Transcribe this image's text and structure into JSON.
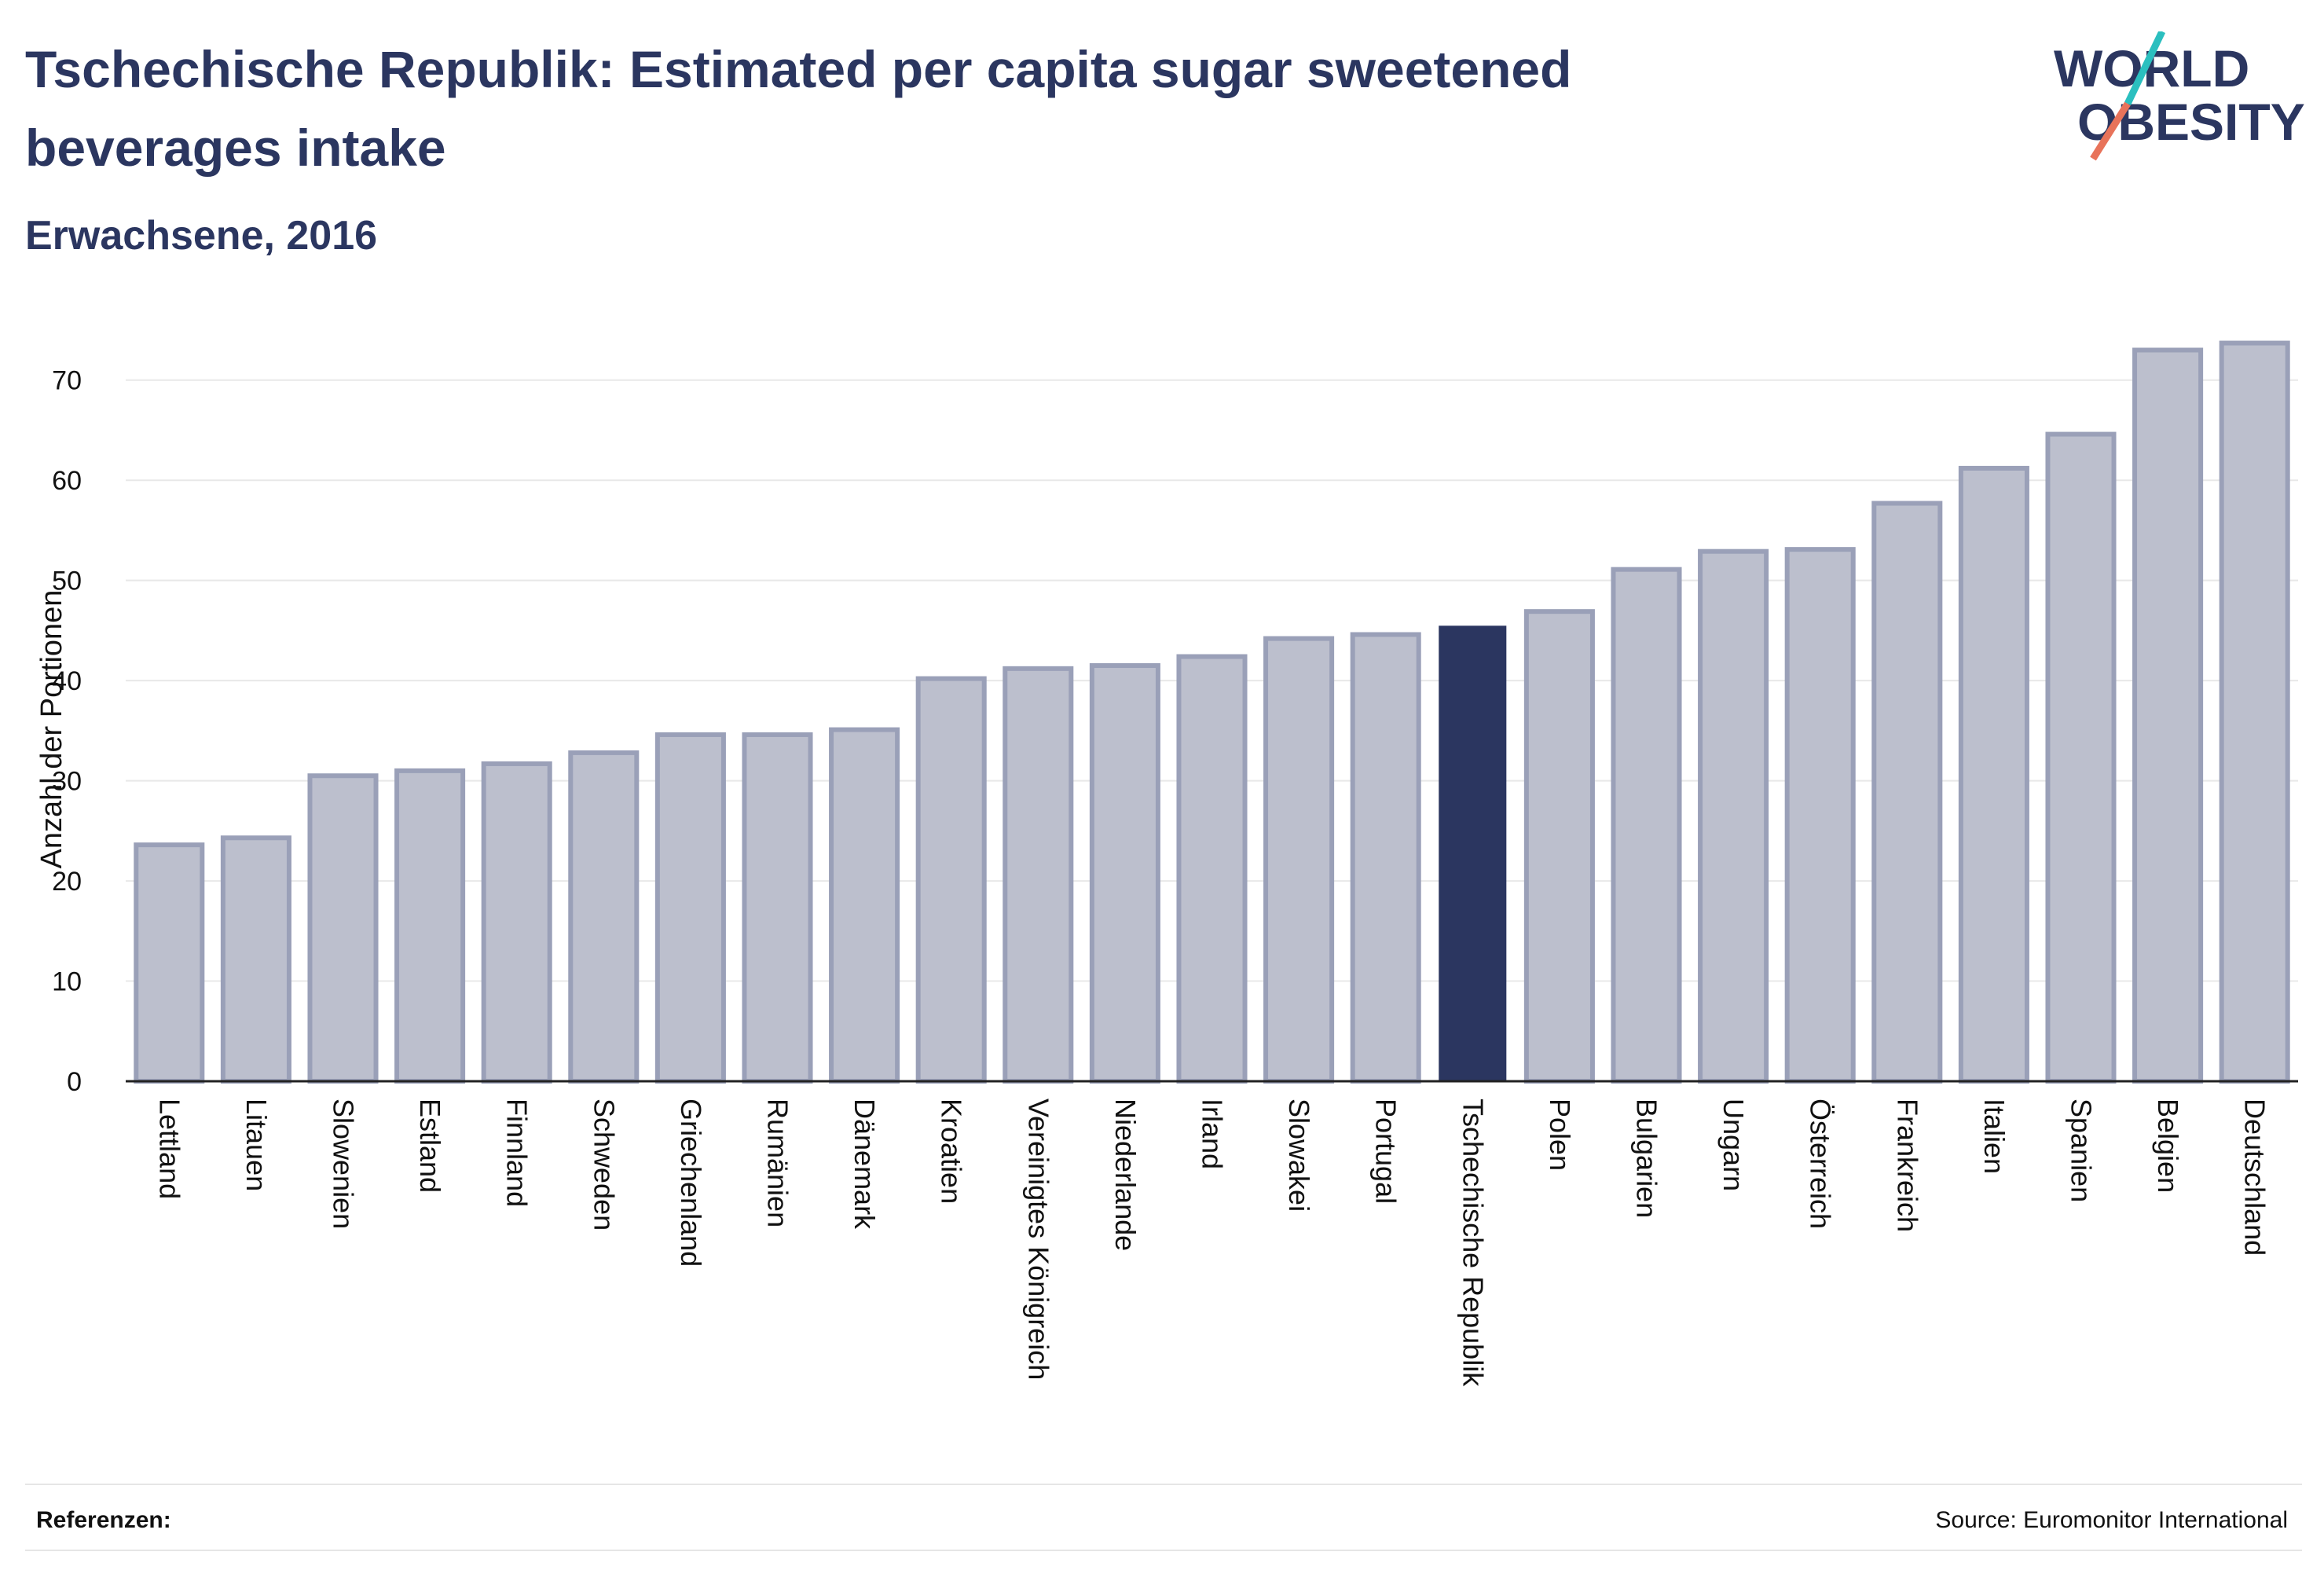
{
  "header": {
    "title": "Tschechische Republik: Estimated per capita sugar sweetened beverages intake",
    "subtitle": "Erwachsene, 2016"
  },
  "logo": {
    "line1": "WORLD",
    "line2": "OBESITY",
    "accent_teal": "#2bbfbf",
    "accent_coral": "#e8735a"
  },
  "footer": {
    "references_label": "Referenzen:",
    "source": "Source: Euromonitor International"
  },
  "colors": {
    "bar_default": "#bcbfcd",
    "bar_border": "#9aa0b8",
    "bar_highlight": "#2b3660",
    "text": "#2b3660"
  },
  "chart_data": {
    "type": "bar",
    "title": "Tschechische Republik: Estimated per capita sugar sweetened beverages intake",
    "subtitle": "Erwachsene, 2016",
    "xlabel": "",
    "ylabel": "Anzahl der Portionen",
    "ylim": [
      0,
      75
    ],
    "yticks": [
      0,
      10,
      20,
      30,
      40,
      50,
      60,
      70
    ],
    "grid": true,
    "highlight": "Tschechische Republik",
    "categories": [
      "Lettland",
      "Litauen",
      "Slowenien",
      "Estland",
      "Finnland",
      "Schweden",
      "Griechenland",
      "Rumänien",
      "Dänemark",
      "Kroatien",
      "Vereinigtes Königreich",
      "Niederlande",
      "Irland",
      "Slowakei",
      "Portugal",
      "Tschechische Republik",
      "Polen",
      "Bulgarien",
      "Ungarn",
      "Österreich",
      "Frankreich",
      "Italien",
      "Spanien",
      "Belgien",
      "Deutschland"
    ],
    "values": [
      23.6,
      24.3,
      30.5,
      31.0,
      31.7,
      32.8,
      34.6,
      34.6,
      35.1,
      40.2,
      41.2,
      41.5,
      42.4,
      44.2,
      44.6,
      45.4,
      46.9,
      51.1,
      52.9,
      53.1,
      57.7,
      61.2,
      64.6,
      73.0,
      73.7
    ]
  }
}
